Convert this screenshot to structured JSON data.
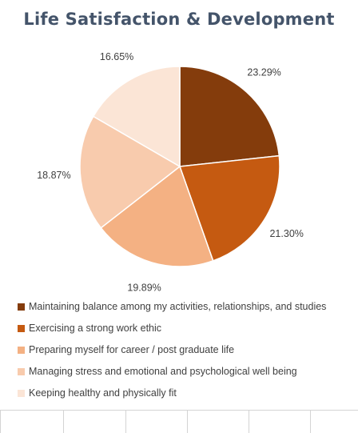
{
  "chart_data": {
    "type": "pie",
    "title": "Life Satisfaction & Development",
    "labels": [
      "Maintaining balance among my activities, relationships, and studies",
      "Exercising a strong work ethic",
      "Preparing myself for career / post graduate life",
      "Managing stress and emotional and psychological well being",
      "Keeping healthy and physically fit"
    ],
    "values": [
      23.29,
      21.3,
      19.89,
      18.87,
      16.65
    ],
    "value_labels": [
      "23.29%",
      "21.30%",
      "19.89%",
      "18.87%",
      "16.65%"
    ],
    "colors": [
      "#843c0c",
      "#c55a11",
      "#f4b183",
      "#f8cbad",
      "#fbe5d6"
    ],
    "legend_position": "bottom",
    "start_angle": "12 o'clock",
    "direction": "clockwise"
  }
}
